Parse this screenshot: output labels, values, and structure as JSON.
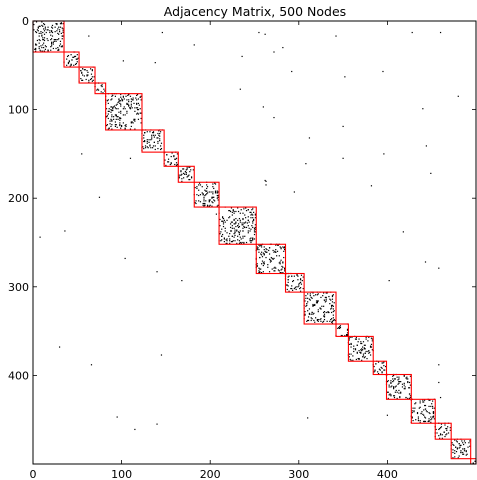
{
  "chart_data": {
    "type": "heatmap",
    "title": "Adjacency Matrix, 500 Nodes",
    "xlabel": "",
    "ylabel": "",
    "n_nodes": 500,
    "xlim": [
      0,
      500
    ],
    "ylim": [
      500,
      0
    ],
    "xticks": [
      0,
      100,
      200,
      300,
      400
    ],
    "yticks": [
      0,
      100,
      200,
      300,
      400
    ],
    "grid": false,
    "colors": {
      "points": "#000000",
      "blocks": "#ff0000",
      "frame": "#000000"
    },
    "blocks": [
      {
        "start": 0,
        "end": 35
      },
      {
        "start": 35,
        "end": 52
      },
      {
        "start": 52,
        "end": 70
      },
      {
        "start": 70,
        "end": 82
      },
      {
        "start": 82,
        "end": 123
      },
      {
        "start": 123,
        "end": 148
      },
      {
        "start": 148,
        "end": 164
      },
      {
        "start": 164,
        "end": 182
      },
      {
        "start": 182,
        "end": 210
      },
      {
        "start": 210,
        "end": 252
      },
      {
        "start": 252,
        "end": 285
      },
      {
        "start": 285,
        "end": 306
      },
      {
        "start": 306,
        "end": 342
      },
      {
        "start": 342,
        "end": 356
      },
      {
        "start": 356,
        "end": 384
      },
      {
        "start": 384,
        "end": 399
      },
      {
        "start": 399,
        "end": 427
      },
      {
        "start": 427,
        "end": 454
      },
      {
        "start": 454,
        "end": 472
      },
      {
        "start": 472,
        "end": 494
      },
      {
        "start": 494,
        "end": 500
      }
    ],
    "outliers": [
      [
        63,
        17
      ],
      [
        146,
        13
      ],
      [
        255,
        13
      ],
      [
        262,
        15
      ],
      [
        428,
        13
      ],
      [
        460,
        13
      ],
      [
        182,
        27
      ],
      [
        272,
        35
      ],
      [
        292,
        57
      ],
      [
        342,
        17
      ],
      [
        352,
        63
      ],
      [
        395,
        57
      ],
      [
        102,
        45
      ],
      [
        138,
        47
      ],
      [
        234,
        77
      ],
      [
        260,
        97
      ],
      [
        272,
        109
      ],
      [
        480,
        85
      ],
      [
        350,
        119
      ],
      [
        444,
        141
      ],
      [
        440,
        99
      ],
      [
        396,
        150
      ],
      [
        110,
        155
      ],
      [
        263,
        181
      ],
      [
        295,
        193
      ],
      [
        308,
        161
      ],
      [
        350,
        155
      ],
      [
        382,
        186
      ],
      [
        449,
        172
      ],
      [
        75,
        199
      ],
      [
        8,
        244
      ],
      [
        36,
        237
      ],
      [
        262,
        180
      ],
      [
        263,
        185
      ],
      [
        104,
        268
      ],
      [
        140,
        283
      ],
      [
        168,
        293
      ],
      [
        402,
        293
      ],
      [
        443,
        272
      ],
      [
        458,
        279
      ],
      [
        30,
        368
      ],
      [
        145,
        377
      ],
      [
        66,
        388
      ],
      [
        384,
        372
      ],
      [
        458,
        388
      ],
      [
        458,
        408
      ],
      [
        95,
        447
      ],
      [
        115,
        461
      ],
      [
        140,
        455
      ],
      [
        310,
        448
      ],
      [
        460,
        425
      ],
      [
        400,
        445
      ],
      [
        282,
        30
      ],
      [
        312,
        132
      ],
      [
        207,
        218
      ],
      [
        418,
        238
      ],
      [
        236,
        40
      ],
      [
        55,
        150
      ]
    ]
  }
}
